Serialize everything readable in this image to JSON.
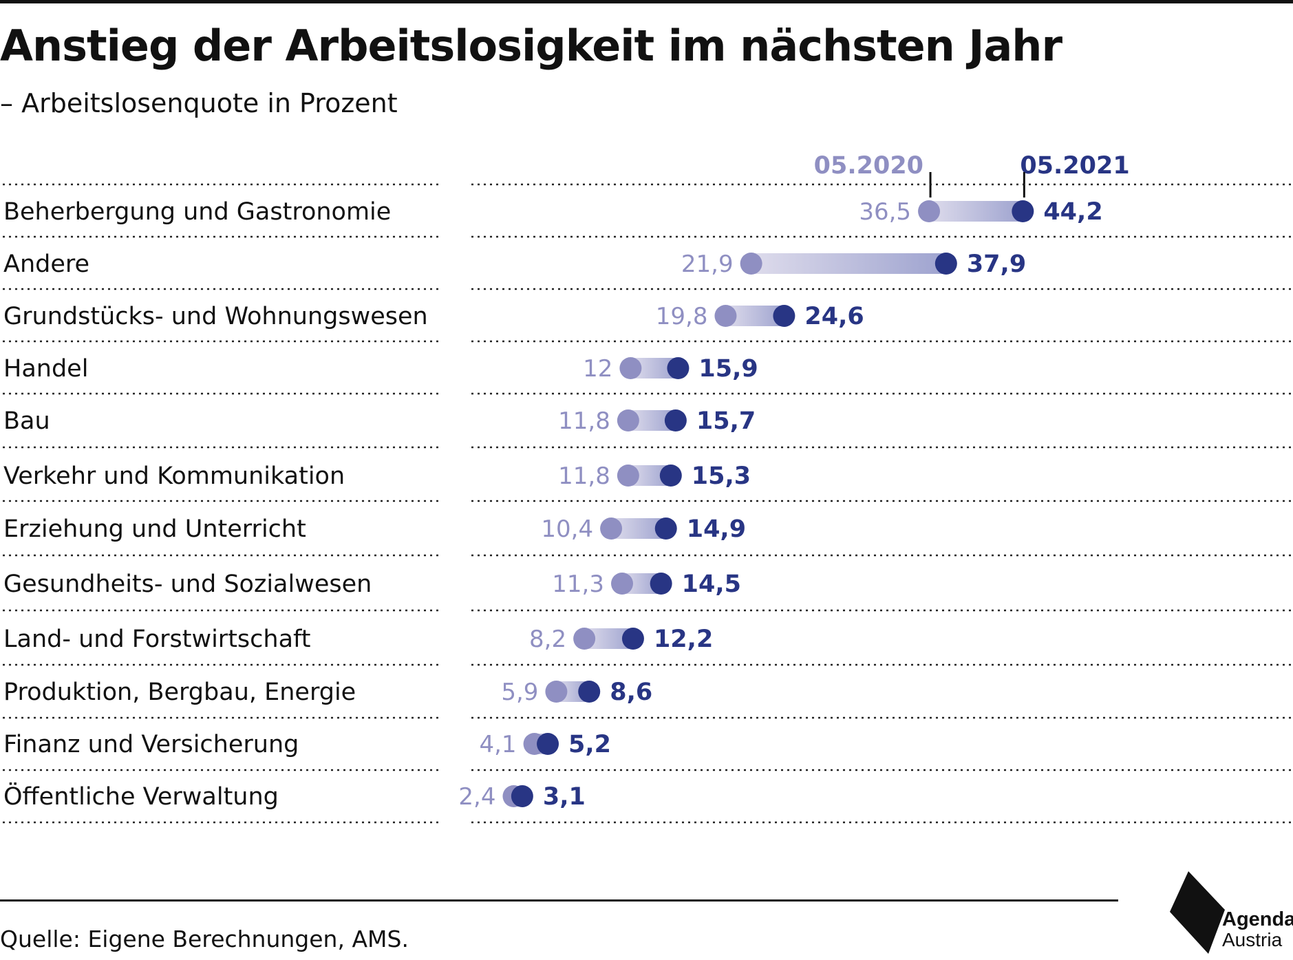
{
  "title": "Anstieg der Arbeitslosigkeit im nächsten Jahr",
  "subtitle": "– Arbeitslosenquote in Prozent",
  "source": "Quelle: Eigene Berechnungen, AMS.",
  "logo": {
    "line1": "Agenda",
    "line2": "Austria"
  },
  "colors": {
    "series_2020": "#8f8fc2",
    "series_2021": "#283584",
    "text": "#111111",
    "rule": "#111111"
  },
  "chart_data": {
    "type": "dumbbell",
    "unit": "%",
    "series": [
      {
        "name": "05.2020",
        "color": "#8f8fc2"
      },
      {
        "name": "05.2021",
        "color": "#283584"
      }
    ],
    "categories": [
      "Beherbergung und Gastronomie",
      "Andere",
      "Grundstücks- und Wohnungswesen",
      "Handel",
      "Bau",
      "Verkehr und Kommunikation",
      "Erziehung und Unterricht",
      "Gesundheits- und Sozialwesen",
      "Land- und Forstwirtschaft",
      "Produktion, Bergbau, Energie",
      "Finanz und Versicherung",
      "Öffentliche Verwaltung"
    ],
    "values_2020": [
      36.5,
      21.9,
      19.8,
      12,
      11.8,
      11.8,
      10.4,
      11.3,
      8.2,
      5.9,
      4.1,
      2.4
    ],
    "values_2021": [
      44.2,
      37.9,
      24.6,
      15.9,
      15.7,
      15.3,
      14.9,
      14.5,
      12.2,
      8.6,
      5.2,
      3.1
    ],
    "labels_2020": [
      "36,5",
      "21,9",
      "19,8",
      "12",
      "11,8",
      "11,8",
      "10,4",
      "11,3",
      "8,2",
      "5,9",
      "4,1",
      "2,4"
    ],
    "labels_2021": [
      "44,2",
      "37,9",
      "24,6",
      "15,9",
      "15,7",
      "15,3",
      "14,9",
      "14,5",
      "12,2",
      "8,6",
      "5,2",
      "3,1"
    ],
    "grid": false,
    "legend": "top-right, above first row"
  }
}
